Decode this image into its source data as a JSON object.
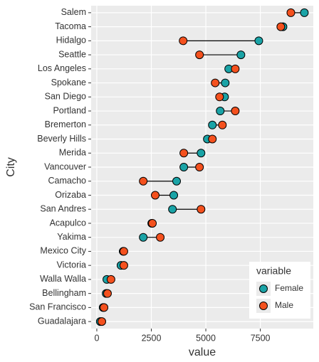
{
  "chart_data": {
    "type": "dumbbell",
    "x_label": "value",
    "y_label": "City",
    "categories": [
      "Salem",
      "Tacoma",
      "Hidalgo",
      "Seattle",
      "Los Angeles",
      "Spokane",
      "San Diego",
      "Portland",
      "Bremerton",
      "Beverly Hills",
      "Merida",
      "Vancouver",
      "Camacho",
      "Orizaba",
      "San Andres",
      "Acapulco",
      "Yakima",
      "Mexico City",
      "Victoria",
      "Walla Walla",
      "Bellingham",
      "San Francisco",
      "Guadalajara"
    ],
    "series": [
      {
        "name": "Female",
        "color": "#1aa3a6",
        "values": [
          9520,
          8540,
          7430,
          6610,
          6050,
          5890,
          5860,
          5660,
          5300,
          5070,
          4780,
          3990,
          3660,
          3530,
          3470,
          2520,
          2130,
          1210,
          1110,
          460,
          430,
          290,
          160
        ]
      },
      {
        "name": "Male",
        "color": "#f4511e",
        "values": [
          8900,
          8440,
          3960,
          4710,
          6350,
          5430,
          5630,
          6350,
          5760,
          5300,
          3990,
          4710,
          2130,
          2680,
          4780,
          2550,
          2910,
          1240,
          1240,
          650,
          490,
          330,
          230
        ]
      }
    ],
    "xlim": [
      -260,
      9930
    ],
    "xticks": [
      0,
      2500,
      5000,
      7500
    ],
    "grid": true,
    "legend_title": "variable",
    "legend_position": "bottom-right"
  }
}
